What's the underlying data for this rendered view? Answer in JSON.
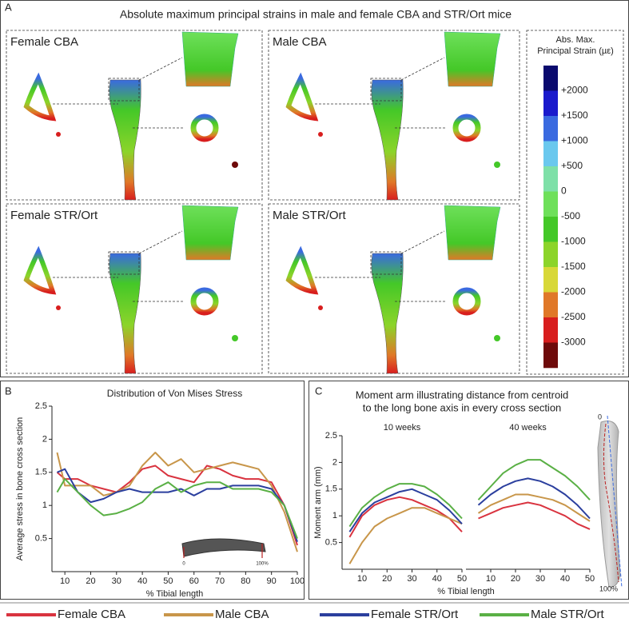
{
  "panel_labels": [
    "A",
    "B",
    "C"
  ],
  "panel_a": {
    "title": "Absolute maximum principal strains in male and female CBA and STR/Ort mice",
    "subpanels": [
      "Female CBA",
      "Male CBA",
      "Female STR/Ort",
      "Male STR/Ort"
    ],
    "colorbar": {
      "title_lines": [
        "Abs. Max.",
        "Principal Strain (µε)"
      ],
      "labels": [
        "+2000",
        "+1500",
        "+1000",
        "+500",
        "0",
        "-500",
        "-1000",
        "-1500",
        "-2000",
        "-2500",
        "-3000"
      ],
      "colors": [
        "#0a0a6e",
        "#1a1acc",
        "#3a6ae0",
        "#6ac8ee",
        "#7ee0a8",
        "#6ee05a",
        "#44c828",
        "#8cd42a",
        "#d8d838",
        "#e07828",
        "#d81e1e",
        "#6e0a0a"
      ]
    }
  },
  "panel_b": {
    "annotations": [
      "0",
      "100%"
    ]
  },
  "panel_c": {
    "title_lines": [
      "Moment arm illustrating distance from centroid",
      "to the long bone axis in every cross section"
    ],
    "annotations": [
      "0",
      "100%"
    ]
  },
  "chart_data": [
    {
      "type": "line",
      "title": "Distribution of Von Mises Stress",
      "xlabel": "% Tibial length",
      "ylabel": "Average stress in bone cross section",
      "x": [
        7,
        10,
        15,
        20,
        25,
        30,
        35,
        40,
        45,
        50,
        55,
        60,
        65,
        70,
        75,
        80,
        85,
        90,
        95,
        100
      ],
      "xlim": [
        5,
        100
      ],
      "xticks": [
        10,
        20,
        30,
        40,
        50,
        60,
        70,
        80,
        90,
        100
      ],
      "ylim": [
        0,
        2.5
      ],
      "yticks": [
        0.5,
        1,
        1.5,
        2,
        2.5
      ],
      "series": [
        {
          "name": "Female CBA",
          "color": "#d9333f",
          "values": [
            1.5,
            1.4,
            1.4,
            1.3,
            1.25,
            1.2,
            1.35,
            1.55,
            1.6,
            1.45,
            1.4,
            1.35,
            1.6,
            1.55,
            1.45,
            1.4,
            1.4,
            1.35,
            1.0,
            0.4
          ]
        },
        {
          "name": "Male CBA",
          "color": "#c8964a",
          "values": [
            1.8,
            1.3,
            1.3,
            1.3,
            1.15,
            1.2,
            1.3,
            1.6,
            1.8,
            1.6,
            1.7,
            1.5,
            1.55,
            1.6,
            1.65,
            1.6,
            1.55,
            1.3,
            0.9,
            0.3
          ]
        },
        {
          "name": "Female STR/Ort",
          "color": "#2b3f9e",
          "values": [
            1.5,
            1.55,
            1.2,
            1.05,
            1.1,
            1.2,
            1.25,
            1.2,
            1.2,
            1.2,
            1.25,
            1.15,
            1.25,
            1.25,
            1.3,
            1.3,
            1.3,
            1.25,
            1.0,
            0.45
          ]
        },
        {
          "name": "Male STR/Ort",
          "color": "#5ab045",
          "values": [
            1.2,
            1.4,
            1.2,
            1.0,
            0.85,
            0.88,
            0.95,
            1.05,
            1.25,
            1.35,
            1.2,
            1.3,
            1.35,
            1.35,
            1.25,
            1.25,
            1.25,
            1.2,
            1.0,
            0.5
          ]
        }
      ]
    },
    {
      "type": "line",
      "subtitle": "10 weeks",
      "xlabel": "% Tibial length",
      "ylabel": "Moment arm (mm)",
      "x": [
        5,
        10,
        15,
        20,
        25,
        30,
        35,
        40,
        45,
        50
      ],
      "xlim": [
        2,
        50
      ],
      "xticks": [
        10,
        20,
        30,
        40,
        50
      ],
      "ylim": [
        0,
        2.5
      ],
      "yticks": [
        0.5,
        1,
        1.5,
        2,
        2.5
      ],
      "series": [
        {
          "name": "Female CBA",
          "color": "#d9333f",
          "values": [
            0.6,
            1.0,
            1.2,
            1.3,
            1.35,
            1.3,
            1.2,
            1.1,
            0.95,
            0.7
          ]
        },
        {
          "name": "Male CBA",
          "color": "#c8964a",
          "values": [
            0.1,
            0.5,
            0.8,
            0.95,
            1.05,
            1.15,
            1.15,
            1.05,
            0.95,
            0.85
          ]
        },
        {
          "name": "Female STR/Ort",
          "color": "#2b3f9e",
          "values": [
            0.7,
            1.05,
            1.25,
            1.35,
            1.45,
            1.5,
            1.4,
            1.3,
            1.1,
            0.85
          ]
        },
        {
          "name": "Male STR/Ort",
          "color": "#5ab045",
          "values": [
            0.8,
            1.15,
            1.35,
            1.5,
            1.6,
            1.6,
            1.55,
            1.4,
            1.2,
            0.95
          ]
        }
      ]
    },
    {
      "type": "line",
      "subtitle": "40 weeks",
      "x": [
        5,
        10,
        15,
        20,
        25,
        30,
        35,
        40,
        45,
        50
      ],
      "xlim": [
        0,
        50
      ],
      "xticks": [
        10,
        20,
        30,
        40,
        50
      ],
      "ylim": [
        0,
        2.5
      ],
      "series": [
        {
          "name": "Female CBA",
          "color": "#d9333f",
          "values": [
            0.95,
            1.05,
            1.15,
            1.2,
            1.25,
            1.2,
            1.1,
            1.0,
            0.85,
            0.75
          ]
        },
        {
          "name": "Male CBA",
          "color": "#c8964a",
          "values": [
            1.05,
            1.2,
            1.3,
            1.4,
            1.4,
            1.35,
            1.3,
            1.2,
            1.05,
            0.9
          ]
        },
        {
          "name": "Female STR/Ort",
          "color": "#2b3f9e",
          "values": [
            1.2,
            1.4,
            1.55,
            1.65,
            1.7,
            1.65,
            1.55,
            1.4,
            1.2,
            0.95
          ]
        },
        {
          "name": "Male STR/Ort",
          "color": "#5ab045",
          "values": [
            1.3,
            1.55,
            1.8,
            1.95,
            2.05,
            2.05,
            1.9,
            1.75,
            1.55,
            1.3
          ]
        }
      ]
    }
  ]
}
